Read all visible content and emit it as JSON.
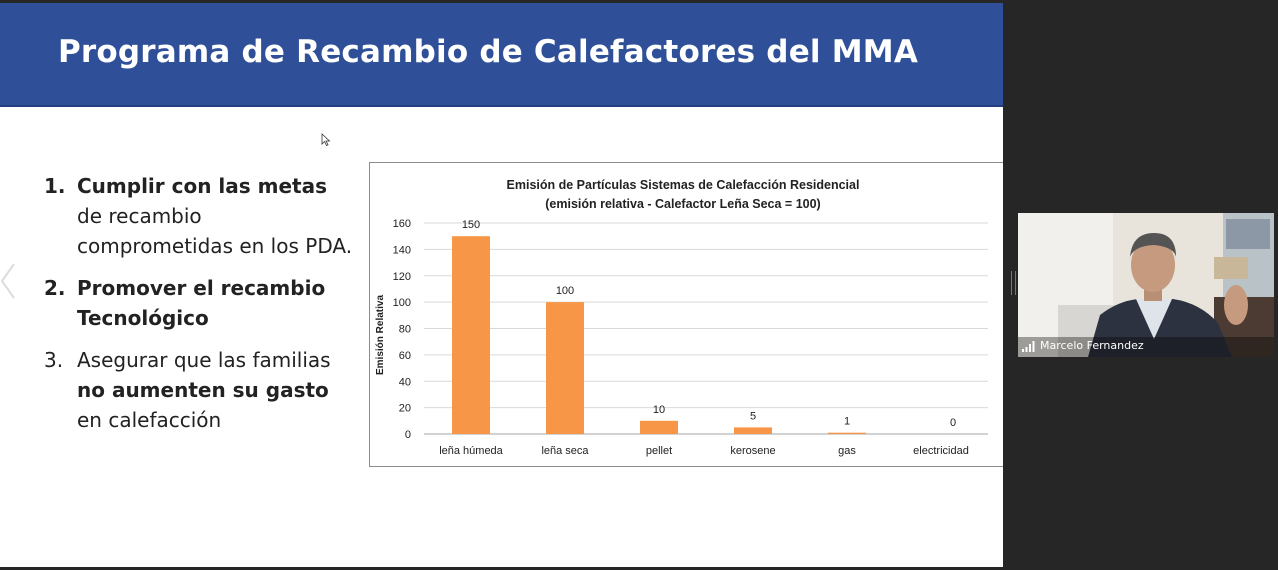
{
  "slide": {
    "title": "Programa de Recambio de Calefactores del MMA",
    "bullets": [
      {
        "num": "1.",
        "bold": "Cumplir con las metas",
        "rest": " de recambio comprometidas en los PDA."
      },
      {
        "num": "2.",
        "bold": "Promover el recambio Tecnológico",
        "rest": ""
      },
      {
        "num": "3.",
        "pre": "Asegurar que las familias ",
        "bold": "no aumenten su gasto",
        "rest": " en calefacción"
      }
    ]
  },
  "chart_data": {
    "type": "bar",
    "title": "Emisión de Partículas Sistemas de Calefacción Residencial",
    "subtitle": "(emisión relativa - Calefactor Leña Seca = 100)",
    "ylabel": "Emisión Relativa",
    "categories": [
      "leña húmeda",
      "leña seca",
      "pellet",
      "kerosene",
      "gas",
      "electricidad"
    ],
    "values": [
      150,
      100,
      10,
      5,
      1,
      0
    ],
    "data_labels": [
      "150",
      "100",
      "10",
      "5",
      "1",
      "0"
    ],
    "ylim": [
      0,
      160
    ],
    "yticks": [
      "0",
      "20",
      "40",
      "60",
      "80",
      "100",
      "120",
      "140",
      "160"
    ],
    "grid": true,
    "colors": {
      "bar": "#f79646",
      "grid": "#d9d9d9"
    }
  },
  "video": {
    "participant_name": "Marcelo Fernandez",
    "signal_icon": "signal-bars-icon"
  },
  "colors": {
    "header": "#2f4f98",
    "background": "#262626"
  }
}
